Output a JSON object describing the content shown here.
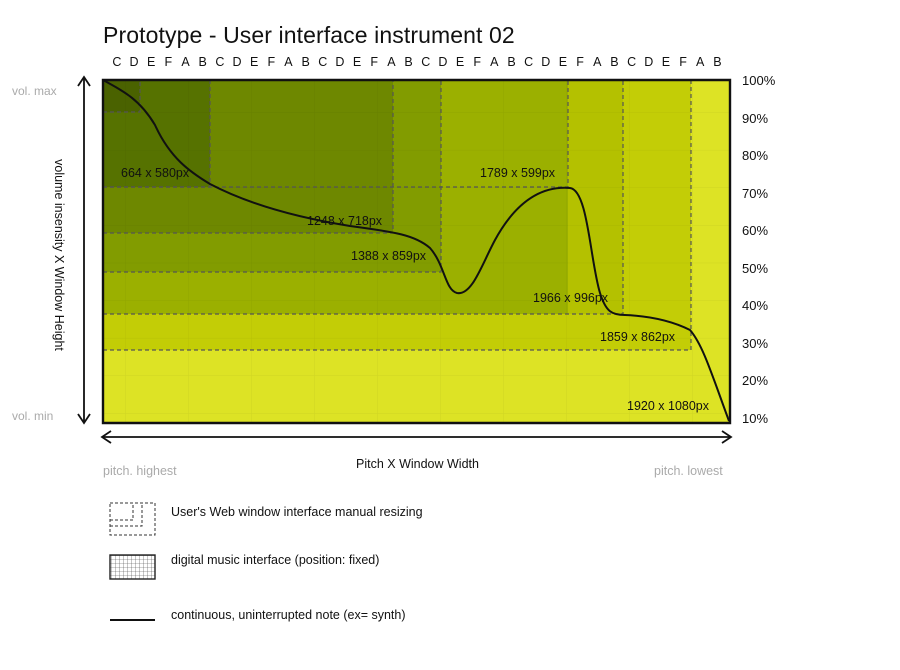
{
  "title": "Prototype - User interface instrument 02",
  "note_letters": [
    "C",
    "D",
    "E",
    "F",
    "A",
    "B",
    "C",
    "D",
    "E",
    "F",
    "A",
    "B",
    "C",
    "D",
    "E",
    "F",
    "A",
    "B",
    "C",
    "D",
    "E",
    "F",
    "A",
    "B",
    "C",
    "D",
    "E",
    "F",
    "A",
    "B",
    "C",
    "D",
    "E",
    "F",
    "A",
    "B"
  ],
  "y_axis": {
    "top_label": "vol. max",
    "bottom_label": "vol. min",
    "title": "volume insensity  X Window Height",
    "percent_labels": [
      "100%",
      "90%",
      "80%",
      "70%",
      "60%",
      "50%",
      "40%",
      "30%",
      "20%",
      "10%"
    ]
  },
  "x_axis": {
    "title": "Pitch X  Window Width",
    "left_label": "pitch. highest",
    "right_label": "pitch. lowest"
  },
  "windows": [
    {
      "label": "664 x 580px"
    },
    {
      "label": "1248 x 718px"
    },
    {
      "label": "1388 x 859px"
    },
    {
      "label": "1789 x 599px"
    },
    {
      "label": "1966 x 996px"
    },
    {
      "label": "1859 x 862px"
    },
    {
      "label": "1920 x 1080px"
    }
  ],
  "legend": [
    {
      "icon": "dashed-window-icon",
      "text": "User's Web window interface manual resizing"
    },
    {
      "icon": "grid-interface-icon",
      "text": "digital music interface (position: fixed)"
    },
    {
      "icon": "solid-line-icon",
      "text": "continuous, uninterrupted note (ex= synth)"
    }
  ],
  "colors": {
    "dark": "#4a6200",
    "mid": "#7f9a00",
    "light": "#dde325",
    "line": "#111111"
  }
}
